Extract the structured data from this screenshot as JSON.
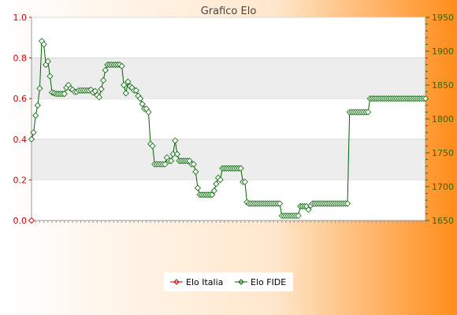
{
  "chart_data": {
    "type": "line",
    "title": "Grafico Elo",
    "background_gradient": [
      "#ffffff",
      "#ff8c1a"
    ],
    "band_color": "#ededed",
    "left_axis": {
      "color": "#cc0000",
      "ylim": [
        0.0,
        1.0
      ],
      "ticks": [
        "0.0",
        "0.2",
        "0.4",
        "0.6",
        "0.8",
        "1.0"
      ]
    },
    "right_axis": {
      "color": "#336600",
      "ylim": [
        1650,
        1950
      ],
      "ticks": [
        "1650",
        "1700",
        "1750",
        "1800",
        "1850",
        "1900",
        "1950"
      ]
    },
    "x_tick_note": "x-axis tick labels are overprinted and illegible in the source",
    "series": [
      {
        "name": "Elo Italia",
        "axis": "left",
        "color": "#cc0000",
        "values": [
          0.0
        ]
      },
      {
        "name": "Elo FIDE",
        "axis": "right",
        "color": "#006600",
        "values": [
          1770,
          1780,
          1805,
          1820,
          1845,
          1915,
          1910,
          1880,
          1885,
          1863,
          1839,
          1838,
          1837,
          1837,
          1837,
          1837,
          1837,
          1846,
          1850,
          1845,
          1843,
          1840,
          1840,
          1842,
          1842,
          1842,
          1842,
          1842,
          1842,
          1843,
          1839,
          1841,
          1835,
          1832,
          1844,
          1857,
          1872,
          1880,
          1880,
          1880,
          1880,
          1880,
          1880,
          1880,
          1878,
          1850,
          1838,
          1855,
          1848,
          1846,
          1842,
          1842,
          1834,
          1830,
          1822,
          1815,
          1815,
          1810,
          1763,
          1760,
          1733,
          1733,
          1733,
          1733,
          1733,
          1733,
          1743,
          1738,
          1738,
          1748,
          1768,
          1748,
          1738,
          1738,
          1738,
          1738,
          1738,
          1738,
          1733,
          1733,
          1722,
          1698,
          1688,
          1688,
          1688,
          1688,
          1688,
          1688,
          1688,
          1694,
          1704,
          1713,
          1710,
          1727,
          1727,
          1727,
          1727,
          1727,
          1727,
          1727,
          1727,
          1727,
          1727,
          1707,
          1707,
          1677,
          1675,
          1675,
          1675,
          1675,
          1675,
          1675,
          1675,
          1675,
          1675,
          1675,
          1675,
          1675,
          1675,
          1675,
          1675,
          1675,
          1657,
          1657,
          1657,
          1657,
          1657,
          1657,
          1657,
          1657,
          1657,
          1671,
          1671,
          1671,
          1671,
          1666,
          1672,
          1675,
          1675,
          1675,
          1675,
          1675,
          1675,
          1675,
          1675,
          1675,
          1675,
          1675,
          1675,
          1675,
          1675,
          1675,
          1675,
          1675,
          1675,
          1810,
          1810,
          1810,
          1810,
          1810,
          1810,
          1810,
          1810,
          1810,
          1810,
          1830,
          1830,
          1830,
          1830,
          1830,
          1830,
          1830,
          1830,
          1830,
          1830,
          1830,
          1830,
          1830,
          1830,
          1830,
          1830,
          1830,
          1830,
          1830,
          1830,
          1830,
          1830,
          1830,
          1830,
          1830,
          1830,
          1830,
          1830
        ]
      }
    ]
  }
}
